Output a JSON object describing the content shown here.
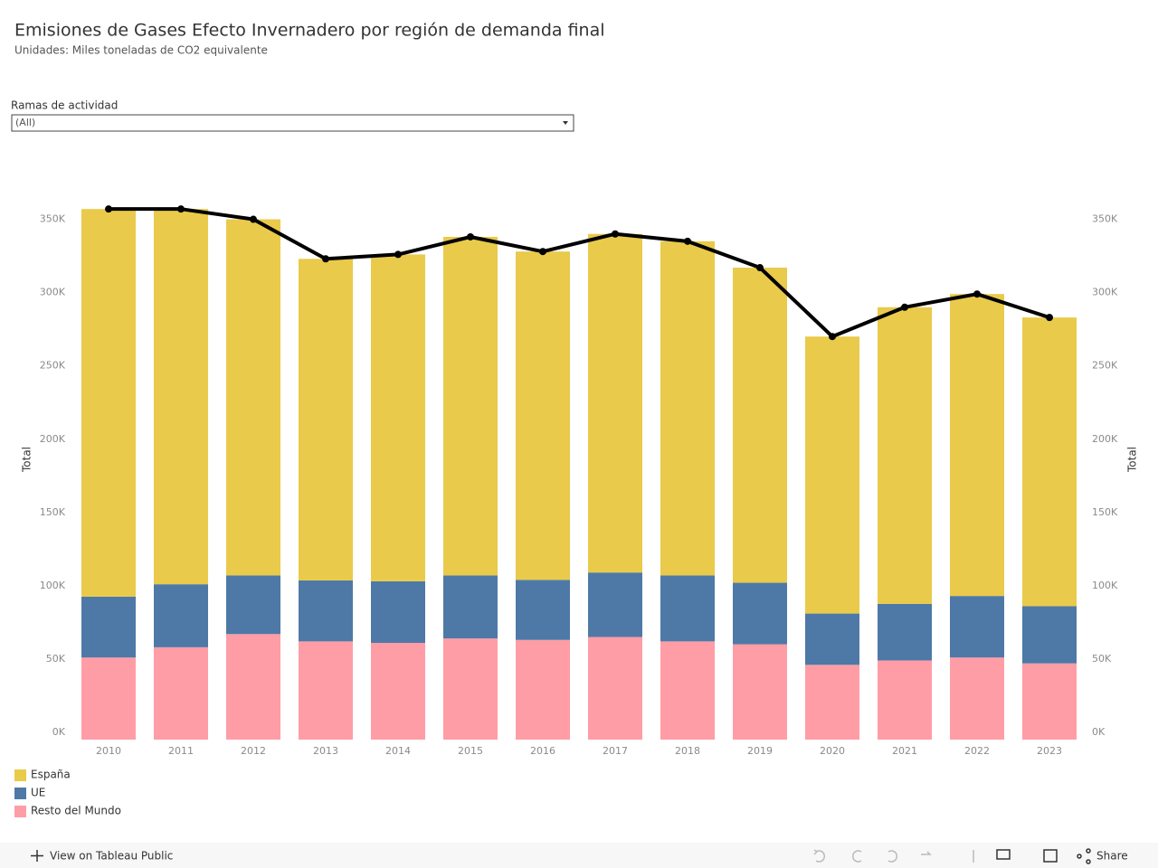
{
  "chart_data": {
    "type": "bar",
    "title": "Emisiones de Gases Efecto Invernadero por región de demanda final",
    "subtitle": "Unidades: Miles toneladas de CO2 equivalente",
    "y_label": "Total",
    "y2_label": "Total",
    "categories": [
      "2010",
      "2011",
      "2012",
      "2013",
      "2014",
      "2015",
      "2016",
      "2017",
      "2018",
      "2019",
      "2020",
      "2021",
      "2022",
      "2023"
    ],
    "series": [
      {
        "name": "Resto del Mundo",
        "color": "#ff9da7",
        "values": [
          56000,
          63000,
          72000,
          67000,
          66000,
          69000,
          68000,
          70000,
          67000,
          65000,
          51000,
          54000,
          56000,
          52000
        ]
      },
      {
        "name": "UE",
        "color": "#4e79a7",
        "values": [
          41500,
          43000,
          40000,
          41600,
          42000,
          43000,
          41000,
          44000,
          45000,
          42000,
          35000,
          38600,
          42000,
          39000
        ]
      },
      {
        "name": "España",
        "color": "#e9ca4a",
        "values": [
          264500,
          256000,
          243000,
          219400,
          223000,
          231000,
          224000,
          231000,
          228000,
          215000,
          189000,
          202400,
          206000,
          197000
        ]
      }
    ],
    "line": {
      "color": "#000000",
      "axis": "y2",
      "values": [
        362000,
        362000,
        355000,
        328000,
        331000,
        343000,
        333000,
        345000,
        340000,
        322000,
        275000,
        295000,
        304000,
        288000
      ]
    },
    "ylim": [
      0,
      380000
    ],
    "yticks": [
      {
        "value": 0,
        "label": "0K"
      },
      {
        "value": 50000,
        "label": "50K"
      },
      {
        "value": 100000,
        "label": "100K"
      },
      {
        "value": 150000,
        "label": "150K"
      },
      {
        "value": 200000,
        "label": "200K"
      },
      {
        "value": 250000,
        "label": "250K"
      },
      {
        "value": 300000,
        "label": "300K"
      },
      {
        "value": 350000,
        "label": "350K"
      }
    ],
    "y2lim": [
      0,
      380000
    ],
    "y2ticks": [
      {
        "value": 0,
        "label": "0K"
      },
      {
        "value": 50000,
        "label": "50K"
      },
      {
        "value": 100000,
        "label": "100K"
      },
      {
        "value": 150000,
        "label": "150K"
      },
      {
        "value": 200000,
        "label": "200K"
      },
      {
        "value": 250000,
        "label": "250K"
      },
      {
        "value": 300000,
        "label": "300K"
      },
      {
        "value": 350000,
        "label": "350K"
      }
    ],
    "legend_order": [
      2,
      1,
      0
    ]
  },
  "filter": {
    "label": "Ramas de actividad",
    "value": "(All)"
  },
  "toolbar": {
    "view": "View on Tableau Public",
    "share": "Share"
  }
}
